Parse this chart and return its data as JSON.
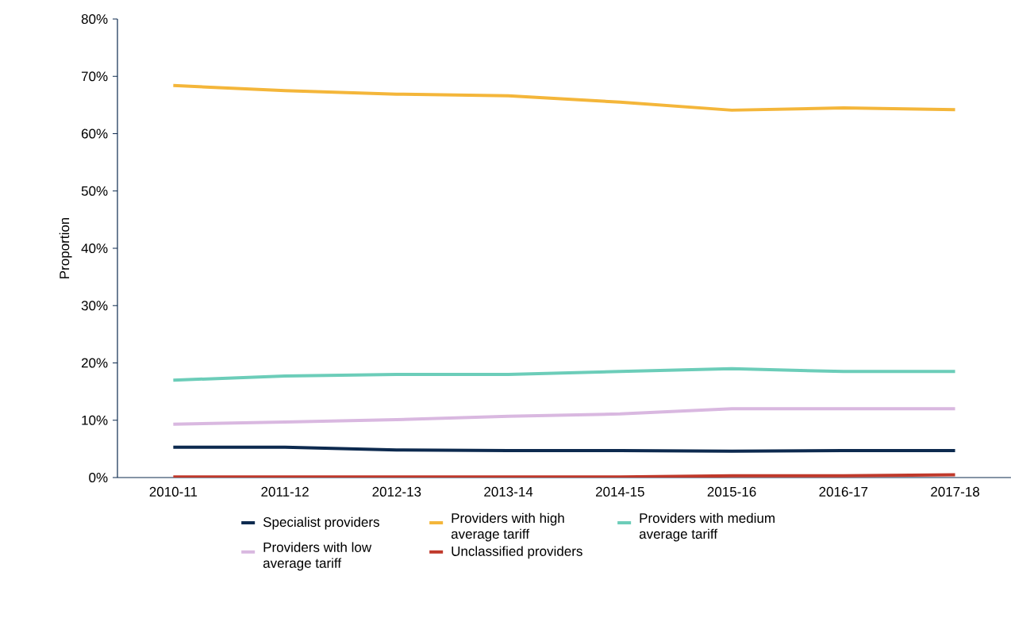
{
  "chart_data": {
    "type": "line",
    "ylabel": "Proportion",
    "categories": [
      "2010-11",
      "2011-12",
      "2012-13",
      "2013-14",
      "2014-15",
      "2015-16",
      "2016-17",
      "2017-18"
    ],
    "series": [
      {
        "name": "Specialist providers",
        "color": "#0d2a4f",
        "values": [
          5.3,
          5.3,
          4.8,
          4.7,
          4.7,
          4.6,
          4.7,
          4.7
        ]
      },
      {
        "name": "Providers with high average tariff",
        "color": "#f4b63a",
        "values": [
          68.4,
          67.5,
          66.9,
          66.6,
          65.5,
          64.1,
          64.5,
          64.2
        ]
      },
      {
        "name": "Providers with medium average tariff",
        "color": "#6ccdb9",
        "values": [
          17.0,
          17.7,
          18.0,
          18.0,
          18.5,
          19.0,
          18.5,
          18.5
        ]
      },
      {
        "name": "Providers with low average tariff",
        "color": "#d9b8e0",
        "values": [
          9.3,
          9.7,
          10.1,
          10.7,
          11.1,
          12.0,
          12.0,
          12.0
        ]
      },
      {
        "name": "Unclassified providers",
        "color": "#c0392b",
        "values": [
          0.1,
          0.1,
          0.1,
          0.1,
          0.1,
          0.3,
          0.3,
          0.5
        ]
      }
    ],
    "ylim": [
      0,
      80
    ],
    "yticks": [
      {
        "value": 0,
        "label": "0%"
      },
      {
        "value": 10,
        "label": "10%"
      },
      {
        "value": 20,
        "label": "20%"
      },
      {
        "value": 30,
        "label": "30%"
      },
      {
        "value": 40,
        "label": "40%"
      },
      {
        "value": 50,
        "label": "50%"
      },
      {
        "value": 60,
        "label": "60%"
      },
      {
        "value": 70,
        "label": "70%"
      },
      {
        "value": 80,
        "label": "80%"
      }
    ],
    "grid": false,
    "legend": "bottom",
    "marker": "none",
    "line_style": "solid"
  }
}
